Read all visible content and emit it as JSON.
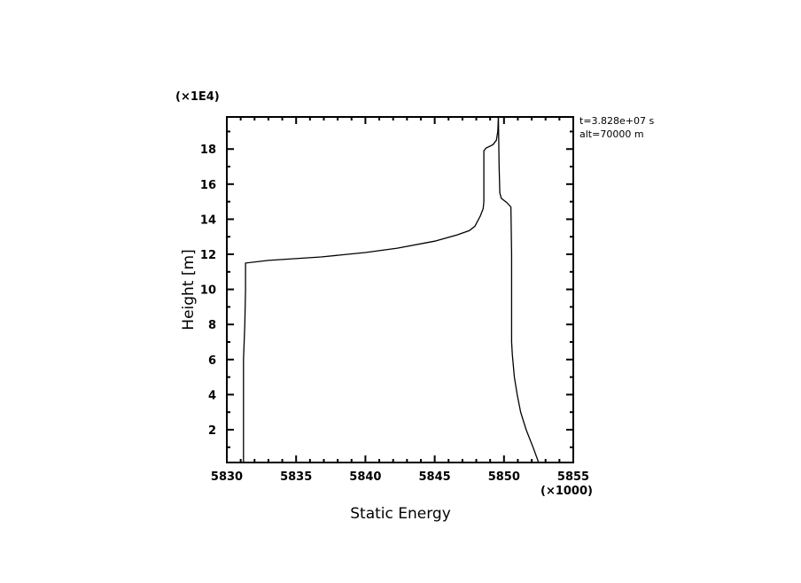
{
  "chart_data": {
    "type": "line",
    "xlabel": "Static Energy",
    "ylabel": "Height [m]",
    "x_multiplier": "(×1000)",
    "y_multiplier": "(×1E4)",
    "xlim": [
      5830,
      5855
    ],
    "ylim": [
      0.13,
      19.83
    ],
    "xticks": [
      "5830",
      "5835",
      "5840",
      "5845",
      "5850",
      "5855"
    ],
    "yticks": [
      "2",
      "4",
      "6",
      "8",
      "10",
      "12",
      "14",
      "16",
      "18"
    ],
    "grid": false,
    "annotations": [
      "t=3.828e+07 s",
      "alt=70000 m"
    ],
    "line_color": "#000000",
    "series": [
      {
        "x": [
          5831.2,
          5831.2,
          5831.3,
          5831.35,
          5831.35,
          5833.0,
          5836.8,
          5840.0,
          5842.3,
          5845.0,
          5846.6,
          5847.5,
          5847.9,
          5848.3,
          5848.5,
          5848.55,
          5848.55,
          5848.7,
          5849.2,
          5849.45,
          5849.55,
          5849.6
        ],
        "y": [
          0.13,
          6.0,
          8.0,
          10.0,
          11.5,
          11.65,
          11.85,
          12.1,
          12.35,
          12.75,
          13.1,
          13.35,
          13.6,
          14.2,
          14.6,
          15.0,
          17.9,
          18.05,
          18.25,
          18.5,
          19.0,
          19.83
        ]
      },
      {
        "x": [
          5852.5,
          5852.1,
          5851.6,
          5851.2,
          5850.95,
          5850.75,
          5850.6,
          5850.55,
          5850.55,
          5850.5,
          5850.2,
          5849.8,
          5849.7,
          5849.65,
          5849.6
        ],
        "y": [
          0.13,
          1.0,
          2.0,
          3.0,
          4.0,
          5.0,
          6.3,
          7.0,
          12.0,
          14.7,
          14.95,
          15.2,
          15.5,
          17.0,
          19.83
        ]
      }
    ]
  }
}
